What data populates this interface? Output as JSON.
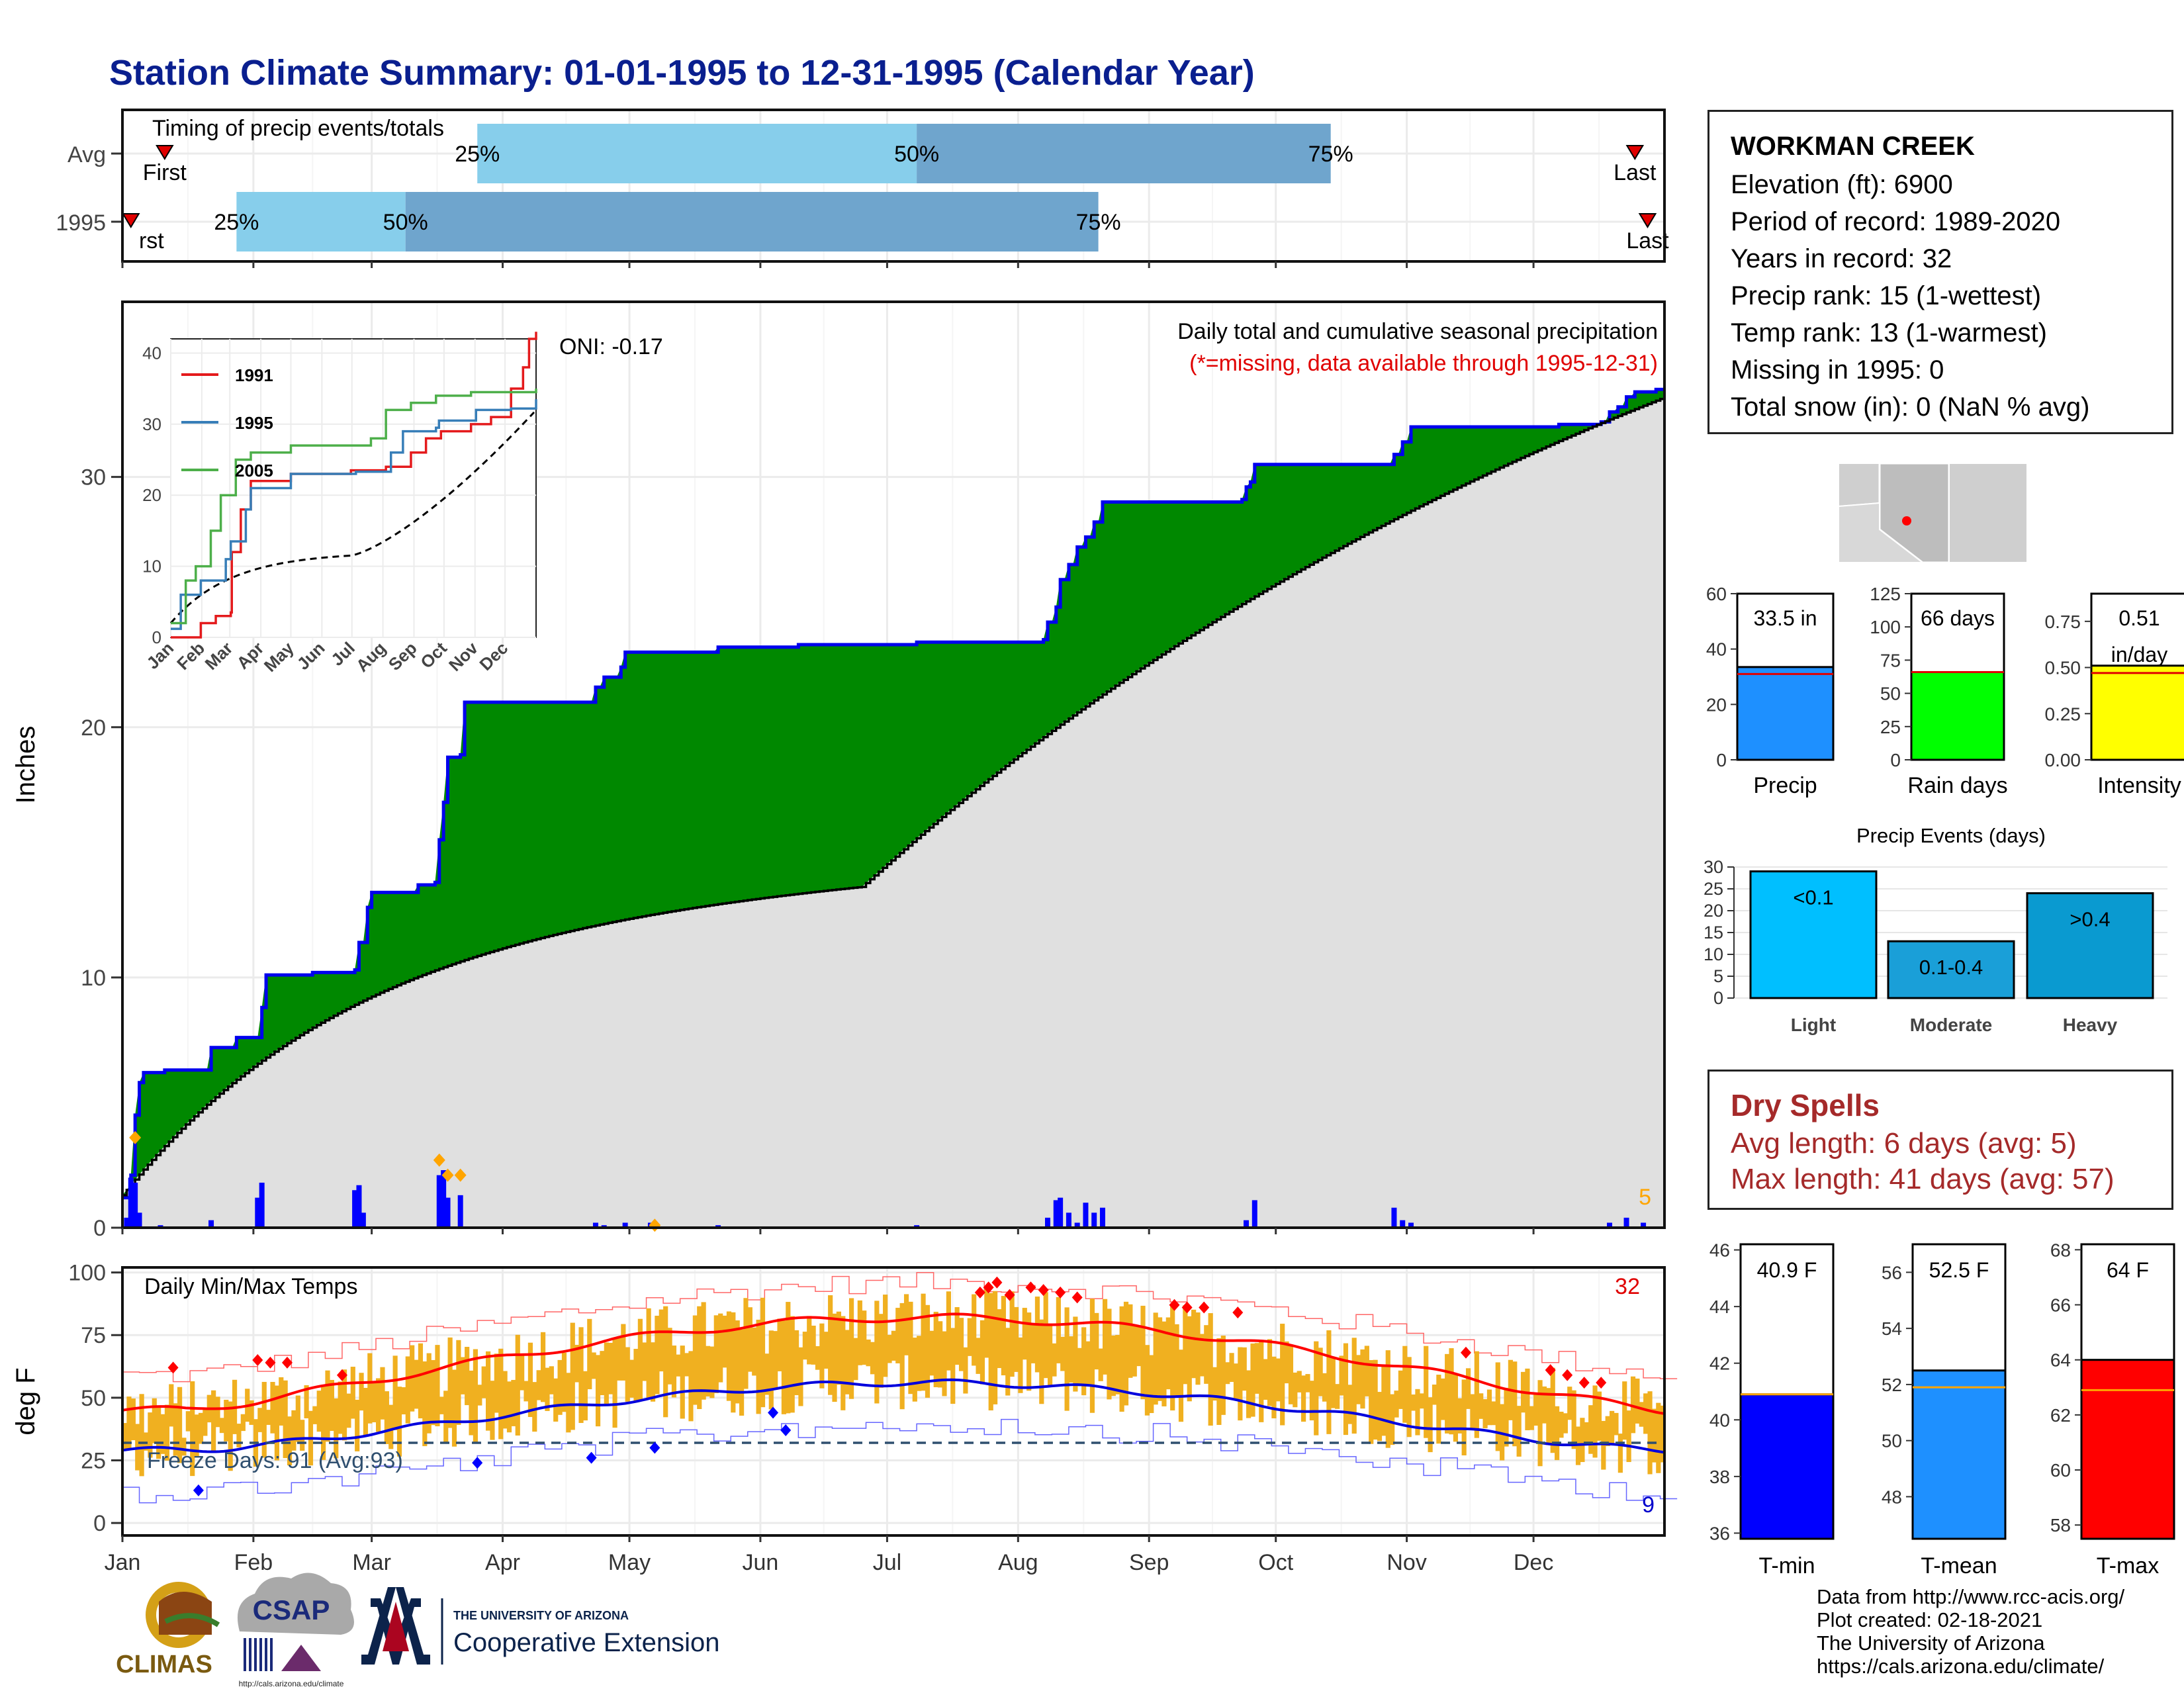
{
  "title": "Station Climate Summary: 01-01-1995 to 12-31-1995 (Calendar Year)",
  "months": [
    "Jan",
    "Feb",
    "Mar",
    "Apr",
    "May",
    "Jun",
    "Jul",
    "Aug",
    "Sep",
    "Oct",
    "Nov",
    "Dec"
  ],
  "timing": {
    "panel_label": "Timing of precip events/totals",
    "rows": [
      {
        "label": "Avg",
        "first_doy": 10,
        "p25_doy": 84,
        "p50_doy": 188,
        "p75_doy": 286,
        "last_doy": 358
      },
      {
        "label": "1995",
        "first_doy": 2,
        "p25_doy": 27,
        "p50_doy": 67,
        "p75_doy": 231,
        "last_doy": 361
      }
    ],
    "first_label": "First",
    "last_label": "Last",
    "first_label_1995": "rst",
    "pct_labels": [
      "25%",
      "50%",
      "75%"
    ]
  },
  "station": {
    "name": "WORKMAN CREEK",
    "lines": [
      "Elevation (ft): 6900",
      "Period of record: 1989-2020",
      "Years in record: 32",
      "Precip rank: 15 (1-wettest)",
      "Temp rank: 13 (1-warmest)",
      "Missing in 1995: 0",
      "Total snow (in): 0 (NaN % avg)"
    ]
  },
  "precip_panel": {
    "ylabel": "Inches",
    "subtitle": "Daily total and cumulative seasonal precipitation",
    "missing_note": "(*=missing, data available through 1995-12-31)",
    "oni": "ONI: -0.17",
    "corner_count": "5",
    "yticks": [
      0,
      10,
      20,
      30
    ],
    "ylim": [
      0,
      37
    ],
    "colors": {
      "observed_line": "#0000ee",
      "surplus_fill": "#008800",
      "normal_fill": "#e0e0e0",
      "daily_bars": "#0000ff",
      "extreme_marker": "#ffa500"
    }
  },
  "inset": {
    "yticks": [
      0,
      10,
      20,
      30,
      40
    ],
    "ylim": [
      0,
      42
    ],
    "legend": [
      {
        "name": "1991",
        "color": "#e41a1c"
      },
      {
        "name": "1995",
        "color": "#377eb8"
      },
      {
        "name": "2005",
        "color": "#4daf4a"
      }
    ]
  },
  "temp_panel": {
    "ylabel": "deg F",
    "label": "Daily Min/Max Temps",
    "freeze_text": "Freeze Days: 91 (Avg:93)",
    "hot_count": "32",
    "cold_count": "9",
    "yticks": [
      0,
      25,
      50,
      75,
      100
    ],
    "ylim": [
      -5,
      102
    ],
    "freezing_line": 32,
    "colors": {
      "bars": "#f0b020",
      "max_normal": "#ff0000",
      "min_normal": "#0000dd",
      "record_max": "#ff6666",
      "record_min": "#6666ff",
      "hot_marker": "#ff0000",
      "cold_marker": "#0000ff",
      "freeze_line": "#2f4f6f"
    }
  },
  "locator_map": {
    "label": "Arizona locator map"
  },
  "gauges": [
    {
      "label": "Precip",
      "value_text": "33.5 in",
      "value": 33.5,
      "normal": 31,
      "ticks": [
        "0",
        "20",
        "40",
        "60"
      ],
      "max": 60,
      "color": "#1e90ff"
    },
    {
      "label": "Rain days",
      "value_text": "66 days",
      "value": 66,
      "normal": 66,
      "ticks": [
        "0",
        "25",
        "50",
        "75",
        "100",
        "125"
      ],
      "max": 125,
      "color": "#00ff00"
    },
    {
      "label": "Intensity",
      "value_text": "0.51",
      "value_text2": "in/day",
      "value": 0.51,
      "normal": 0.47,
      "ticks": [
        "0.00",
        "0.25",
        "0.50",
        "0.75"
      ],
      "max": 0.9,
      "color": "#ffff00"
    }
  ],
  "precip_events": {
    "title": "Precip Events (days)",
    "yticks": [
      0,
      5,
      10,
      15,
      20,
      25,
      30
    ],
    "bars": [
      {
        "category": "Light",
        "label": "<0.1",
        "value": 29
      },
      {
        "category": "Moderate",
        "label": "0.1-0.4",
        "value": 13
      },
      {
        "category": "Heavy",
        "label": ">0.4",
        "value": 24
      }
    ]
  },
  "dry_spells": {
    "title": "Dry Spells",
    "avg_line": "Avg length: 6 days (avg: 5)",
    "max_line": "Max length: 41 days (avg: 57)"
  },
  "temp_gauges": [
    {
      "label": "T-min",
      "value_text": "40.9 F",
      "value": 40.9,
      "normal": 40.9,
      "ylim": [
        35.8,
        46.2
      ],
      "ticks": [
        36,
        38,
        40,
        42,
        44,
        46
      ],
      "color": "#0000ff"
    },
    {
      "label": "T-mean",
      "value_text": "52.5 F",
      "value": 52.5,
      "normal": 51.9,
      "ylim": [
        46.5,
        57
      ],
      "ticks": [
        48,
        50,
        52,
        54,
        56
      ],
      "color": "#1e90ff"
    },
    {
      "label": "T-max",
      "value_text": "64 F",
      "value": 64.0,
      "normal": 62.9,
      "ylim": [
        57.5,
        68.2
      ],
      "ticks": [
        58,
        60,
        62,
        64,
        66,
        68
      ],
      "color": "#ff0000"
    }
  ],
  "credits": [
    "Data from http://www.rcc-acis.org/",
    "Plot created: 02-18-2021",
    "The University of Arizona",
    "https://cals.arizona.edu/climate/"
  ],
  "logos": {
    "climas": "CLIMAS",
    "csap": "CSAP",
    "csap_url": "http://cals.arizona.edu/climate",
    "ua_small": "THE UNIVERSITY OF ARIZONA",
    "ua_ext": "Cooperative Extension"
  }
}
